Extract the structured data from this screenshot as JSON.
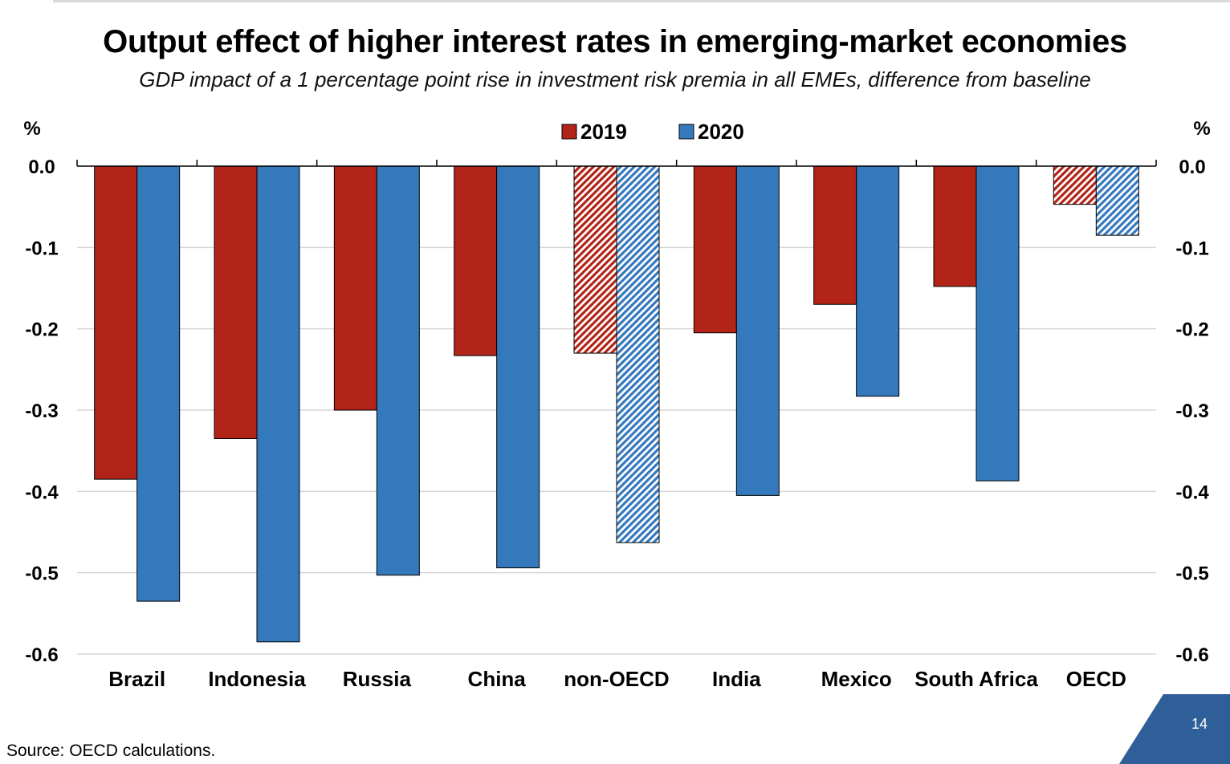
{
  "title": "Output effect of higher interest rates in emerging-market economies",
  "subtitle": "GDP impact of a 1 percentage point rise in investment risk premia in all EMEs, difference from baseline",
  "source": "Source: OECD calculations.",
  "page_number": "14",
  "colors": {
    "series_2019": "#b22418",
    "series_2020": "#3579bd",
    "grid": "#d6d6d6",
    "corner": "#2f5f98"
  },
  "chart_data": {
    "type": "bar",
    "title": "Output effect of higher interest rates in emerging-market economies",
    "subtitle": "GDP impact of a 1 percentage point rise in investment risk premia in all EMEs, difference from baseline",
    "ylabel_left": "%",
    "ylabel_right": "%",
    "ylim": [
      -0.6,
      0.0
    ],
    "yticks": [
      0.0,
      -0.1,
      -0.2,
      -0.3,
      -0.4,
      -0.5,
      -0.6
    ],
    "ytick_labels": [
      "0.0",
      "-0.1",
      "-0.2",
      "-0.3",
      "-0.4",
      "-0.5",
      "-0.6"
    ],
    "grid": true,
    "legend_position": "top-center",
    "categories": [
      "Brazil",
      "Indonesia",
      "Russia",
      "China",
      "non-OECD",
      "India",
      "Mexico",
      "South Africa",
      "OECD"
    ],
    "hatched_categories": [
      "non-OECD",
      "OECD"
    ],
    "series": [
      {
        "name": "2019",
        "color": "#b22418",
        "values": [
          -0.385,
          -0.335,
          -0.3,
          -0.233,
          -0.23,
          -0.205,
          -0.17,
          -0.148,
          -0.047
        ]
      },
      {
        "name": "2020",
        "color": "#3579bd",
        "values": [
          -0.535,
          -0.585,
          -0.503,
          -0.494,
          -0.463,
          -0.405,
          -0.283,
          -0.387,
          -0.085
        ]
      }
    ]
  }
}
